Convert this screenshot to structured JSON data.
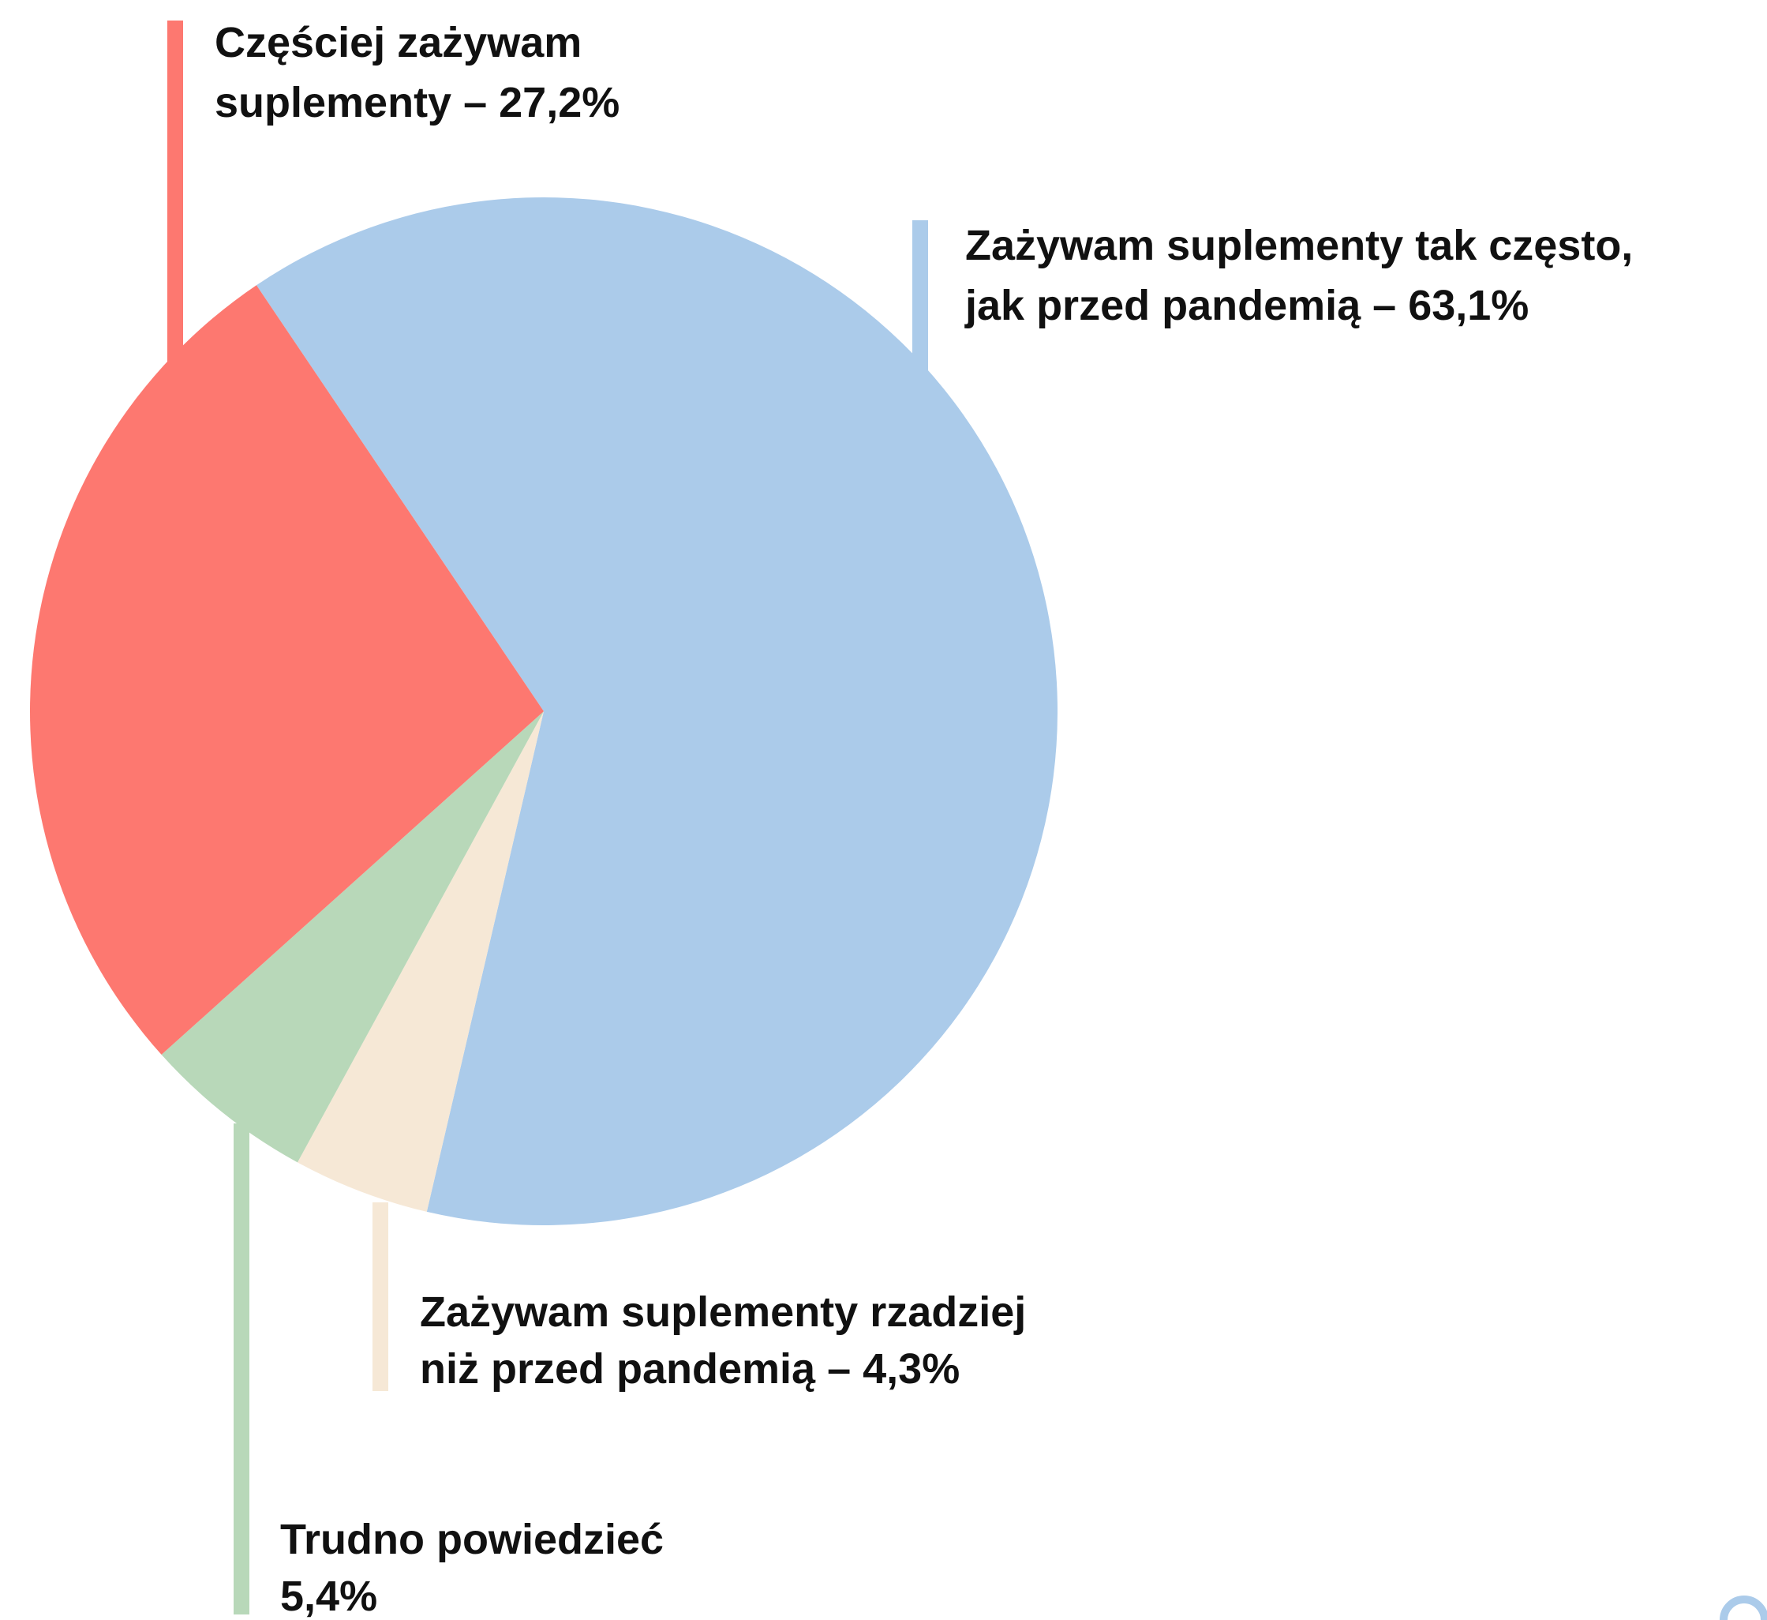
{
  "chart_data": {
    "type": "pie",
    "labels": [
      [
        "Zażywam suplementy tak często,",
        "jak przed pandemią – 63,1%"
      ],
      [
        "Zażywam suplementy rzadziej",
        "niż przed pandemią – 4,3%"
      ],
      [
        "Trudno powiedzieć",
        "5,4%"
      ],
      [
        "Częściej zażywam",
        "suplementy – 27,2%"
      ]
    ],
    "values": [
      63.1,
      4.3,
      5.4,
      27.2
    ],
    "colors": [
      "#abcbea",
      "#f6e8d6",
      "#b8d8b9",
      "#fd7870"
    ]
  }
}
